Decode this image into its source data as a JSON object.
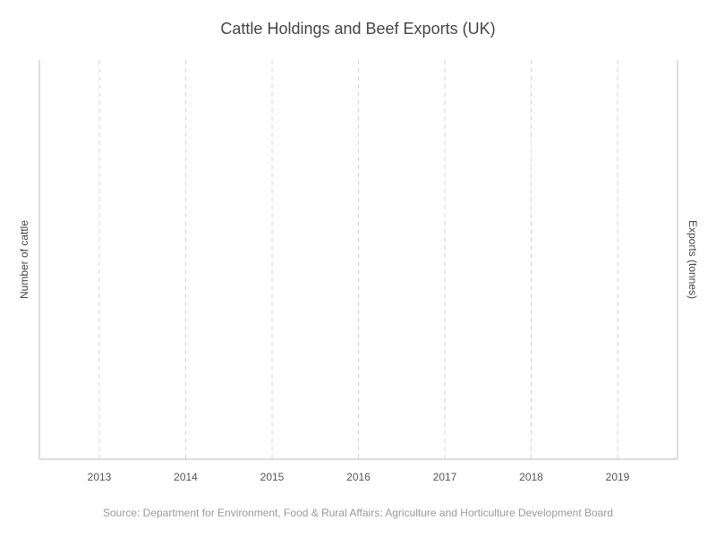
{
  "chart_data": {
    "type": "line",
    "title": "Cattle Holdings and Beef Exports (UK)",
    "xlabel": "",
    "ylabel": "Number of cattle",
    "y2label": "Exports (tonnes)",
    "categories": [
      "2013",
      "2014",
      "2015",
      "2016",
      "2017",
      "2018",
      "2019"
    ],
    "series": [],
    "grid": {
      "x": true,
      "y": false
    },
    "source": "Source: Department for Environment, Food & Rural Affairs; Agriculture and Horticulture Development Board",
    "colors": {
      "title": "#444444",
      "grid": "#d6d6d6",
      "axis": "#bbbbbb",
      "source": "#9a9a9a"
    }
  }
}
